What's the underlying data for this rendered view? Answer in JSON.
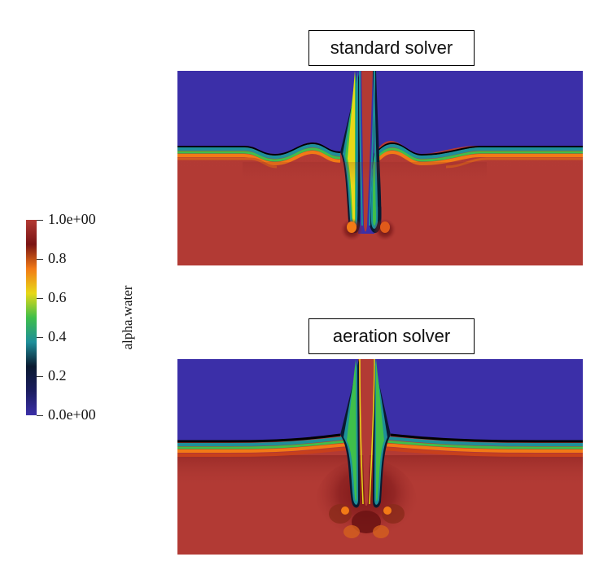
{
  "panels": [
    {
      "title": "standard solver"
    },
    {
      "title": "aeration solver"
    }
  ],
  "colorbar": {
    "title": "alpha.water",
    "ticks": [
      {
        "label": "1.0e+00",
        "value": 1.0
      },
      {
        "label": "0.8",
        "value": 0.8
      },
      {
        "label": "0.6",
        "value": 0.6
      },
      {
        "label": "0.4",
        "value": 0.4
      },
      {
        "label": "0.2",
        "value": 0.2
      },
      {
        "label": "0.0e+00",
        "value": 0.0
      }
    ],
    "colors": [
      "#3b2fa8",
      "#1a1c5e",
      "#0a1a30",
      "#1e8f9a",
      "#3fbf4a",
      "#e8d817",
      "#f27a16",
      "#7a1414",
      "#b23a34"
    ]
  }
}
